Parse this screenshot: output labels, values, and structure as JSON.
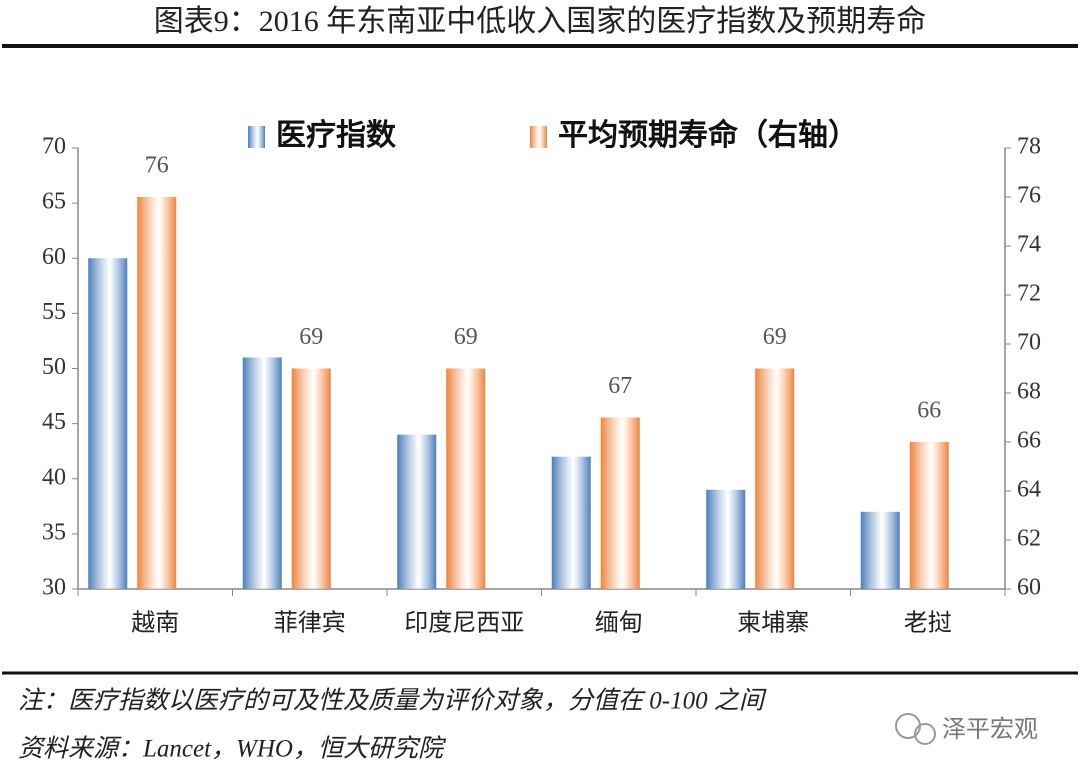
{
  "chart_data": {
    "type": "bar",
    "title": "图表9：2016 年东南亚中低收入国家的医疗指数及预期寿命",
    "categories": [
      "越南",
      "菲律宾",
      "印度尼西亚",
      "缅甸",
      "柬埔寨",
      "老挝"
    ],
    "series": [
      {
        "name": "医疗指数",
        "color": "#4a7ebb",
        "values": [
          60,
          51,
          44,
          42,
          39,
          37
        ]
      },
      {
        "name": "平均预期寿命（右轴）",
        "color": "#f0823c",
        "axis": "y2",
        "data_labels": true,
        "values": [
          76,
          69,
          69,
          67,
          69,
          66
        ]
      }
    ],
    "ylim": [
      30,
      70
    ],
    "yticks": [
      30,
      35,
      40,
      45,
      50,
      55,
      60,
      65,
      70
    ],
    "y2lim": [
      60,
      78
    ],
    "y2ticks": [
      60,
      62,
      64,
      66,
      68,
      70,
      72,
      74,
      76,
      78
    ],
    "legend": "top"
  },
  "note": "注：医疗指数以医疗的可及性及质量为评价对象，分值在 0-100 之间",
  "source": "资料来源：Lancet，WHO，恒大研究院",
  "watermark": "泽平宏观"
}
